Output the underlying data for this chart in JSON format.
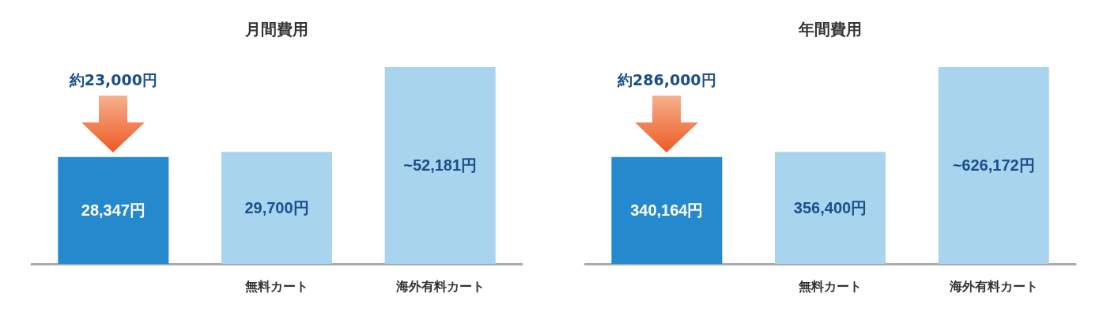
{
  "chart_data": [
    {
      "type": "bar",
      "title": "月間費用",
      "categories": [
        null,
        "無料カート",
        "海外有料カート"
      ],
      "values": [
        28347,
        29700,
        52181
      ],
      "value_labels": [
        "28,347円",
        "29,700円",
        "~52,181円"
      ],
      "colors": [
        "#2589cd",
        "#a8d4ee",
        "#a8d4ee"
      ],
      "annotations": [
        {
          "text": "約23,000円"
        }
      ]
    },
    {
      "type": "bar",
      "title": "年間費用",
      "categories": [
        null,
        "無料カート",
        "海外有料カート"
      ],
      "values": [
        340164,
        356400,
        626172
      ],
      "value_labels": [
        "340,164円",
        "356,400円",
        "~626,172円"
      ],
      "colors": [
        "#2589cd",
        "#a8d4ee",
        "#a8d4ee"
      ],
      "annotations": [
        {
          "text": "約286,000円"
        }
      ]
    }
  ]
}
